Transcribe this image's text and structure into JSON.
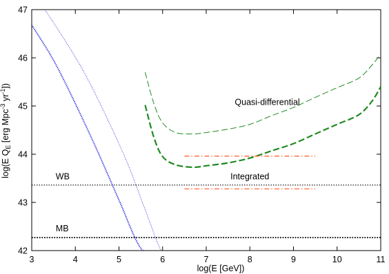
{
  "chart_data": {
    "type": "line",
    "xlabel": "log(E [GeV])",
    "ylabel_parts": {
      "a": "log(E Q",
      "sub": "E",
      "b": " [erg Mpc",
      "sup1": "-3",
      "c": " yr",
      "sup2": "-1",
      "d": "])"
    },
    "xlim": [
      3,
      11
    ],
    "ylim": [
      42,
      47
    ],
    "x_ticks": [
      3,
      4,
      5,
      6,
      7,
      8,
      9,
      10,
      11
    ],
    "y_ticks": [
      42,
      43,
      44,
      45,
      46,
      47
    ],
    "grid": false,
    "legend": "none",
    "series": [
      {
        "role": "thin-dotted-blue",
        "color": "#1f1fd6",
        "x": [
          3.3,
          3.7,
          4.2,
          4.7,
          5.2,
          5.6,
          6.0,
          6.3
        ],
        "y": [
          47.0,
          46.45,
          45.7,
          44.8,
          43.8,
          42.85,
          41.95,
          41.9
        ]
      },
      {
        "role": "thick-dotted-blue",
        "color": "#1f1fd6",
        "x": [
          3.0,
          3.5,
          4.0,
          4.5,
          5.0,
          5.5,
          5.9,
          6.0
        ],
        "y": [
          46.68,
          45.95,
          45.05,
          44.08,
          43.05,
          42.05,
          41.95,
          41.9
        ]
      },
      {
        "name": "Quasi-differential",
        "role": "thin-dashed-green",
        "color": "#1f8a1f",
        "x": [
          5.6,
          5.8,
          6.0,
          6.3,
          6.7,
          7.0,
          7.5,
          8.0,
          8.5,
          9.0,
          9.5,
          10.0,
          10.5,
          10.8,
          11.0
        ],
        "y": [
          45.7,
          45.05,
          44.65,
          44.45,
          44.42,
          44.45,
          44.52,
          44.62,
          44.8,
          44.97,
          45.18,
          45.38,
          45.58,
          45.85,
          46.08
        ]
      },
      {
        "name": "Quasi-differential",
        "role": "thick-dashed-green",
        "color": "#1f8a1f",
        "x": [
          5.6,
          5.8,
          6.0,
          6.3,
          6.7,
          7.0,
          7.5,
          8.0,
          8.5,
          9.0,
          9.5,
          10.0,
          10.5,
          10.8,
          11.0
        ],
        "y": [
          45.02,
          44.35,
          43.95,
          43.78,
          43.73,
          43.76,
          43.82,
          43.92,
          44.07,
          44.22,
          44.42,
          44.62,
          44.82,
          45.1,
          45.4
        ]
      },
      {
        "name": "Integrated",
        "role": "dash-dot-upper",
        "color": "#ff6633",
        "x": [
          6.5,
          9.5
        ],
        "y": [
          43.96,
          43.96
        ]
      },
      {
        "name": "Integrated",
        "role": "dash-dot-lower",
        "color": "#ff6633",
        "x": [
          6.5,
          9.5
        ],
        "y": [
          43.28,
          43.28
        ]
      },
      {
        "name": "WB",
        "role": "thin-dotted-black",
        "color": "#000000",
        "x": [
          3.0,
          11.0
        ],
        "y": [
          43.36,
          43.36
        ]
      },
      {
        "name": "MB",
        "role": "thick-dotted-black",
        "color": "#000000",
        "x": [
          3.0,
          11.0
        ],
        "y": [
          42.27,
          42.27
        ]
      }
    ],
    "annotations": [
      {
        "text": "Quasi-differential",
        "x": 8.4,
        "y": 45.02
      },
      {
        "text": "Integrated",
        "x": 8.0,
        "y": 43.48
      },
      {
        "text": "WB",
        "x": 3.55,
        "y": 43.48
      },
      {
        "text": "MB",
        "x": 3.55,
        "y": 42.4
      }
    ]
  }
}
